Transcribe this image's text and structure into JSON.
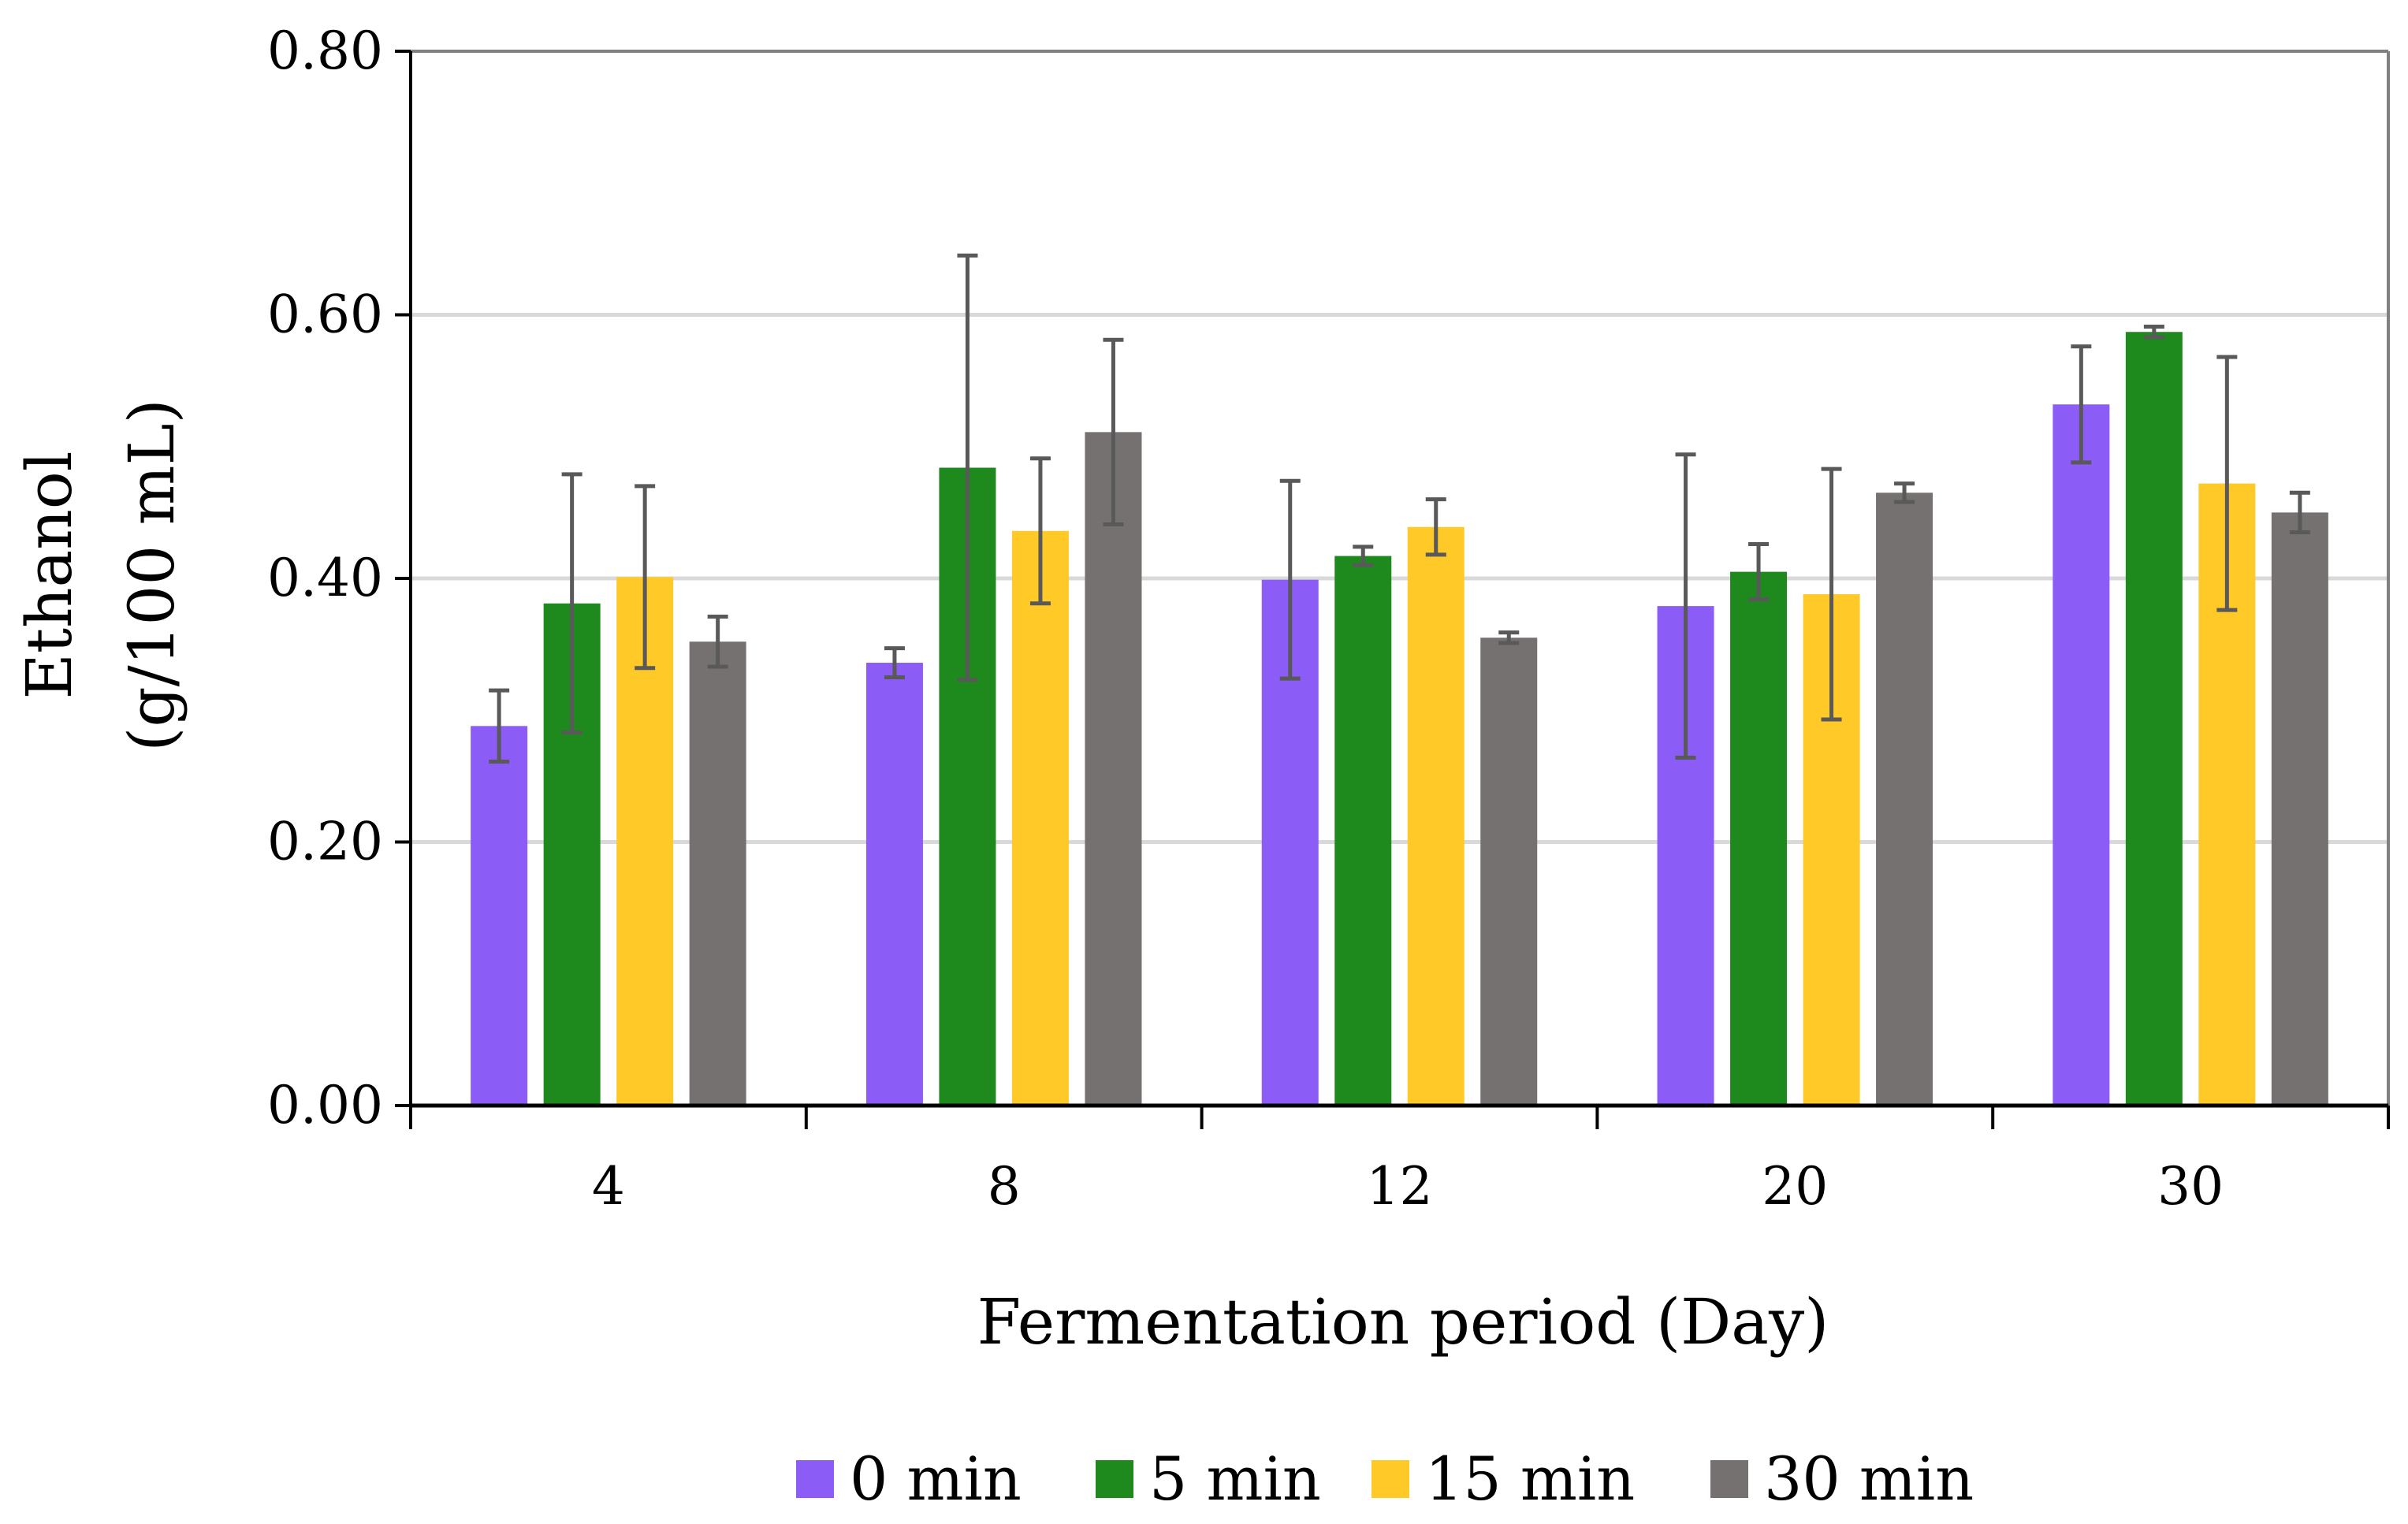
{
  "chart_data": {
    "type": "bar",
    "title": "",
    "xlabel": "Fermentation period (Day)",
    "ylabel_line1": "Ethanol",
    "ylabel_line2": "(g/100 mL)",
    "ylim": [
      0,
      0.8
    ],
    "yticks": [
      "0.00",
      "0.20",
      "0.40",
      "0.60",
      "0.80"
    ],
    "ytick_values": [
      0,
      0.2,
      0.4,
      0.6,
      0.8
    ],
    "grid": true,
    "legend_position": "bottom",
    "categories": [
      "4",
      "8",
      "12",
      "20",
      "30"
    ],
    "series": [
      {
        "name": "0 min",
        "color": "#8b5cf6",
        "values": [
          0.288,
          0.336,
          0.399,
          0.379,
          0.532
        ],
        "errors": [
          0.027,
          0.011,
          0.075,
          0.115,
          0.044
        ]
      },
      {
        "name": "5 min",
        "color": "#1e8a1e",
        "values": [
          0.381,
          0.484,
          0.417,
          0.405,
          0.587
        ],
        "errors": [
          0.098,
          0.161,
          0.007,
          0.021,
          0.004
        ]
      },
      {
        "name": "15 min",
        "color": "#ffca28",
        "values": [
          0.401,
          0.436,
          0.439,
          0.388,
          0.472
        ],
        "errors": [
          0.069,
          0.055,
          0.021,
          0.095,
          0.096
        ]
      },
      {
        "name": "30 min",
        "color": "#767171",
        "values": [
          0.352,
          0.511,
          0.355,
          0.465,
          0.45
        ],
        "errors": [
          0.019,
          0.07,
          0.004,
          0.007,
          0.015
        ]
      }
    ]
  }
}
